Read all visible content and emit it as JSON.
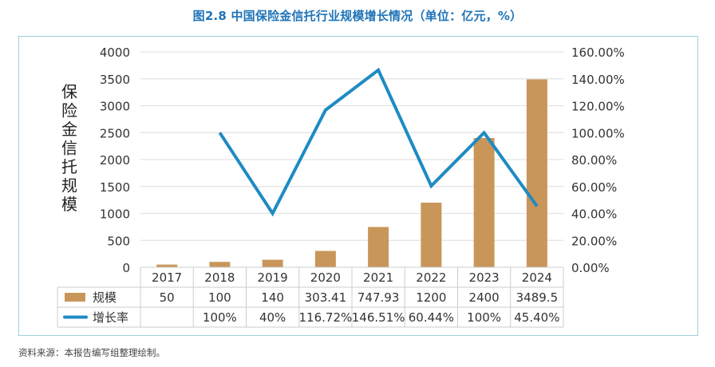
{
  "title": "图2.8 中国保险金信托行业规模增长情况（单位：亿元，%）",
  "source": "资料来源：本报告编写组整理绘制。",
  "colors": {
    "bar": "#C9965A",
    "line": "#1E8BC3",
    "title": "#1F74B8",
    "frame": "#9ECFDC",
    "grid": "#E3E3E3"
  },
  "legend": [
    {
      "label": "规模",
      "icon": "bar-swatch-icon"
    },
    {
      "label": "增长率",
      "icon": "line-swatch-icon"
    }
  ],
  "chart_data": {
    "type": "bar+line",
    "title": "图2.8 中国保险金信托行业规模增长情况（单位：亿元，%）",
    "categories": [
      "2017",
      "2018",
      "2019",
      "2020",
      "2021",
      "2022",
      "2023",
      "2024"
    ],
    "series": [
      {
        "name": "规模",
        "type": "bar",
        "axis": "left",
        "values": [
          50,
          100,
          140,
          303.41,
          747.93,
          1200,
          2400,
          3489.5
        ],
        "labels": [
          "50",
          "100",
          "140",
          "303.41",
          "747.93",
          "1200",
          "2400",
          "3489.5"
        ]
      },
      {
        "name": "增长率",
        "type": "line",
        "axis": "right",
        "values": [
          null,
          100,
          40,
          116.72,
          146.51,
          60.44,
          100,
          45.4
        ],
        "labels": [
          "",
          "100%",
          "40%",
          "116.72%",
          "146.51%",
          "60.44%",
          "100%",
          "45.40%"
        ]
      }
    ],
    "ylabel": "保险金信托规模",
    "ylim": [
      0,
      4000
    ],
    "yticks": [
      "0",
      "500",
      "1000",
      "1500",
      "2000",
      "2500",
      "3000",
      "3500",
      "4000"
    ],
    "y2lim": [
      0,
      160
    ],
    "y2ticks": [
      "0.00%",
      "20.00%",
      "40.00%",
      "60.00%",
      "80.00%",
      "100.00%",
      "120.00%",
      "140.00%",
      "160.00%"
    ],
    "grid": true,
    "legend_position": "data-table-bottom"
  }
}
